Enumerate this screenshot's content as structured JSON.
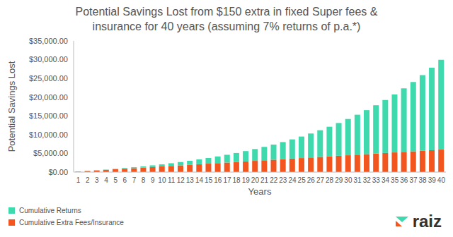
{
  "chart_data": {
    "type": "bar",
    "title": "Potential Savings Lost from $150 extra in fixed Super fees &\ninsurance for 40 years (assuming 7% returns of p.a.*)",
    "x_label": "Years",
    "y_label": "Potential Savings Lost",
    "annotations": [
      "raiz"
    ],
    "categories": [
      "1",
      "2",
      "3",
      "4",
      "5",
      "6",
      "7",
      "8",
      "9",
      "10",
      "11",
      "12",
      "13",
      "14",
      "15",
      "16",
      "17",
      "18",
      "19",
      "20",
      "21",
      "22",
      "23",
      "24",
      "25",
      "26",
      "27",
      "28",
      "29",
      "30",
      "31",
      "32",
      "33",
      "34",
      "35",
      "36",
      "37",
      "38",
      "39",
      "40"
    ],
    "series": [
      {
        "name": "Cumulative Returns",
        "color": "#3fd9ae",
        "values": [
          0,
          10,
          32,
          66,
          113,
          173,
          248,
          339,
          447,
          572,
          718,
          883,
          1071,
          1283,
          1519,
          1783,
          2076,
          2400,
          2757,
          3149,
          3580,
          4051,
          4565,
          5127,
          5737,
          6402,
          7123,
          7905,
          8752,
          9669,
          10661,
          11733,
          12890,
          14139,
          15486,
          16937,
          18501,
          20184,
          21996,
          23945
        ]
      },
      {
        "name": "Cumulative Extra Fees/Insurance",
        "color": "#f2551d",
        "values": [
          150,
          300,
          450,
          600,
          750,
          900,
          1050,
          1200,
          1350,
          1500,
          1650,
          1800,
          1950,
          2100,
          2250,
          2400,
          2550,
          2700,
          2850,
          3000,
          3150,
          3300,
          3450,
          3600,
          3750,
          3900,
          4050,
          4200,
          4350,
          4500,
          4650,
          4800,
          4950,
          5100,
          5250,
          5400,
          5550,
          5700,
          5850,
          6000
        ]
      }
    ],
    "stacked": true,
    "grid": false,
    "legend": "bottom-left",
    "ylim": [
      0,
      35000
    ],
    "yticks": [
      {
        "value": 0,
        "label": "$0.00"
      },
      {
        "value": 5000,
        "label": "$5,000.00"
      },
      {
        "value": 10000,
        "label": "$10,000.00"
      },
      {
        "value": 15000,
        "label": "$15,000.00"
      },
      {
        "value": 20000,
        "label": "$20,000.00"
      },
      {
        "value": 25000,
        "label": "$25,000.00"
      },
      {
        "value": 30000,
        "label": "$30,000.00"
      },
      {
        "value": 35000,
        "label": "$35,000.00"
      }
    ]
  }
}
